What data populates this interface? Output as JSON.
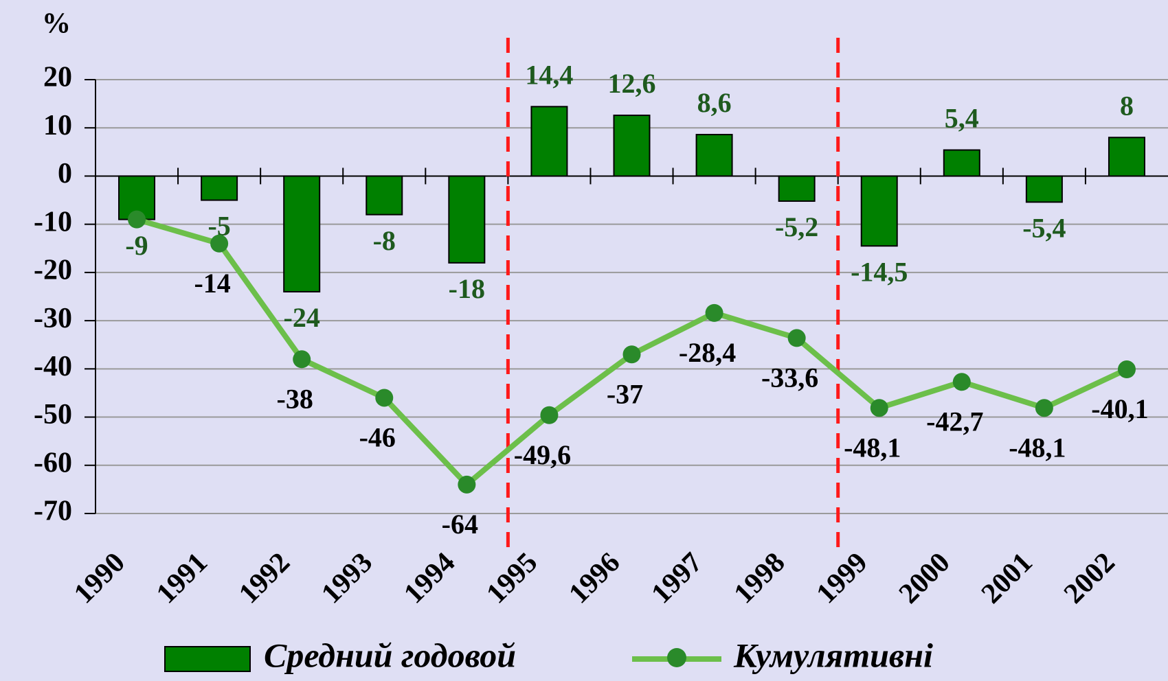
{
  "chart_data": {
    "type": "bar+line",
    "y_label": "%",
    "categories": [
      "1990",
      "1991",
      "1992",
      "1993",
      "1994",
      "1995",
      "1996",
      "1997",
      "1998",
      "1999",
      "2000",
      "2001",
      "2002"
    ],
    "series": [
      {
        "name": "Средний годовой",
        "type": "bar",
        "color": "#008000",
        "values": [
          -9,
          -5,
          -24,
          -8,
          -18,
          14.4,
          12.6,
          8.6,
          -5.2,
          -14.5,
          5.4,
          -5.4,
          8
        ],
        "value_labels": [
          "-9",
          "-5",
          "-24",
          "-8",
          "-18",
          "14,4",
          "12,6",
          "8,6",
          "-5,2",
          "-14,5",
          "5,4",
          "-5,4",
          "8"
        ]
      },
      {
        "name": "Кумулятивні",
        "type": "line",
        "color": "#6cbf4a",
        "marker_color": "#2a8a2a",
        "values": [
          -9,
          -14,
          -38,
          -46,
          -64,
          -49.6,
          -37,
          -28.4,
          -33.6,
          -48.1,
          -42.7,
          -48.1,
          -40.1
        ],
        "value_labels": [
          null,
          "-14",
          "-38",
          "-46",
          "-64",
          "-49,6",
          "-37",
          "-28,4",
          "-33,6",
          "-48,1",
          "-42,7",
          "-48,1",
          "-40,1"
        ]
      }
    ],
    "ylim": [
      -70,
      20
    ],
    "yticks": [
      -70,
      -60,
      -50,
      -40,
      -30,
      -20,
      -10,
      0,
      10,
      20
    ],
    "grid": true
  }
}
